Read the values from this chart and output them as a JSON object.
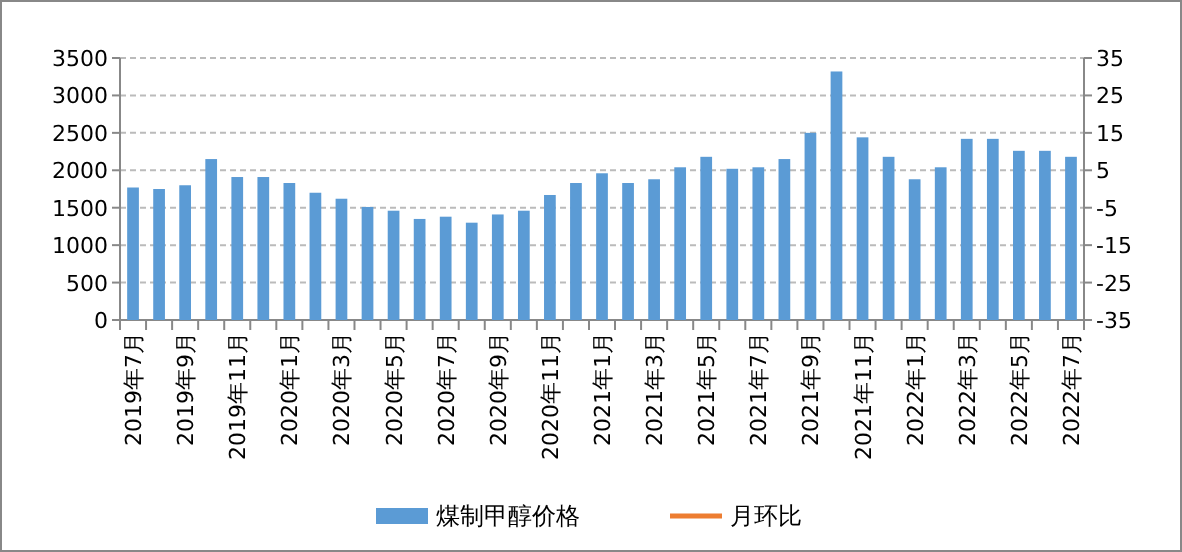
{
  "chart_data": {
    "type": "bar",
    "categories": [
      "2019年7月",
      null,
      "2019年9月",
      null,
      "2019年11月",
      null,
      "2020年1月",
      null,
      "2020年3月",
      null,
      "2020年5月",
      null,
      "2020年7月",
      null,
      "2020年9月",
      null,
      "2020年11月",
      null,
      "2021年1月",
      null,
      "2021年3月",
      null,
      "2021年5月",
      null,
      "2021年7月",
      null,
      "2021年9月",
      null,
      "2021年11月",
      null,
      "2022年1月",
      null,
      "2022年3月",
      null,
      "2022年5月",
      null,
      "2022年7月"
    ],
    "series": [
      {
        "name": "煤制甲醇价格",
        "color": "#5b9bd5",
        "values": [
          1770,
          1750,
          1800,
          2150,
          1910,
          1910,
          1830,
          1700,
          1620,
          1510,
          1460,
          1350,
          1380,
          1300,
          1410,
          1460,
          1670,
          1830,
          1960,
          1830,
          1880,
          2040,
          2180,
          2020,
          2040,
          2150,
          2500,
          3320,
          2440,
          2180,
          1880,
          2040,
          2420,
          2420,
          2260,
          2260,
          2180
        ]
      },
      {
        "name": "月环比",
        "type": "line",
        "axis": "y2",
        "color": "#ed7d31",
        "values": [
          null,
          null,
          null,
          null,
          null,
          null,
          null,
          null,
          null,
          null,
          null,
          null,
          null,
          null,
          null,
          null,
          null,
          null,
          null,
          null,
          null,
          null,
          null,
          null,
          null,
          null,
          null,
          null,
          null,
          null,
          null,
          null,
          null,
          null,
          null,
          null,
          null
        ]
      }
    ],
    "ylim": [
      0,
      3500
    ],
    "yticks": [
      0,
      500,
      1000,
      1500,
      2000,
      2500,
      3000,
      3500
    ],
    "y2lim": [
      -35,
      35
    ],
    "y2ticks": [
      -35,
      -25,
      -15,
      -5,
      5,
      15,
      25,
      35
    ],
    "grid": "y",
    "legend": "bottom"
  }
}
